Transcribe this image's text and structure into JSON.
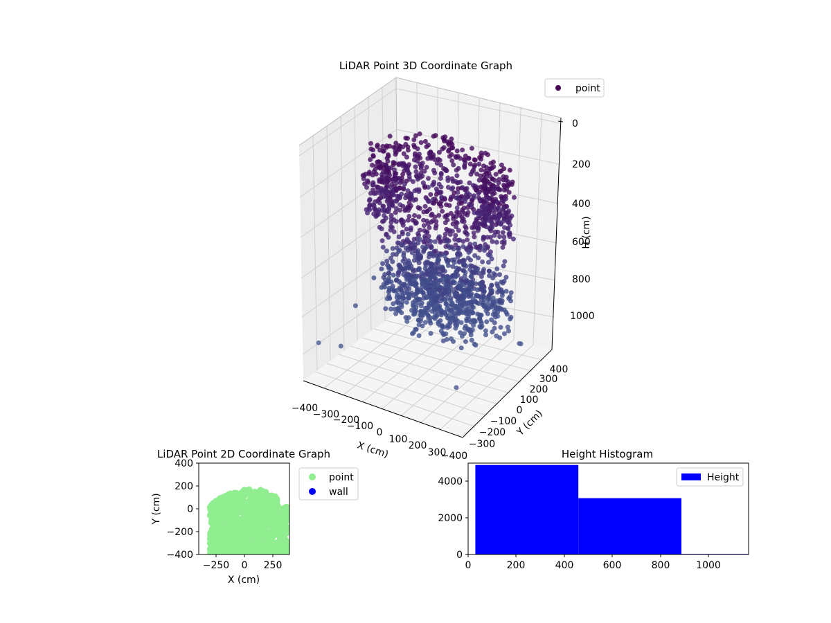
{
  "chart_data": [
    {
      "type": "scatter",
      "projection": "3d",
      "title": "LiDAR Point 3D Coordinate Graph",
      "xlabel": "X (cm)",
      "ylabel": "Y (cm)",
      "zlabel": "H (cm)",
      "x_ticks": [
        "−400",
        "−300",
        "−200",
        "−100",
        "0",
        "100",
        "200",
        "300"
      ],
      "y_ticks": [
        "−400",
        "−300",
        "−200",
        "−100",
        "0",
        "100",
        "200",
        "300",
        "400"
      ],
      "z_ticks": [
        "0",
        "200",
        "400",
        "600",
        "800",
        "1000"
      ],
      "xlim": [
        -400,
        400
      ],
      "ylim": [
        -400,
        400
      ],
      "zlim": [
        0,
        1150
      ],
      "z_axis_inverted": true,
      "colormap": "viridis",
      "legend": [
        "point"
      ],
      "legend_position": "top-right",
      "grid": true,
      "series": [
        {
          "name": "point",
          "description_structure": "dense rings of points at heights ~150-450 cm (upper band) and ~600-900 cm (lower band), scattered outliers near 1000 cm",
          "points": [
            [
              -380,
              300,
              1000
            ],
            [
              -350,
              -120,
              850
            ],
            [
              330,
              330,
              960
            ],
            [
              250,
              150,
              870
            ],
            [
              -360,
              20,
              930
            ],
            [
              300,
              -250,
              1000
            ],
            [
              -200,
              -100,
              930
            ],
            [
              -100,
              -250,
              1050
            ],
            [
              180,
              180,
              780
            ],
            [
              260,
              -330,
              1050
            ],
            [
              -280,
              280,
              990
            ],
            [
              320,
              60,
              820
            ]
          ]
        }
      ]
    },
    {
      "type": "scatter",
      "title": "LiDAR Point 2D Coordinate Graph",
      "xlabel": "X (cm)",
      "ylabel": "Y (cm)",
      "x_ticks": [
        "−250",
        "0",
        "250"
      ],
      "y_ticks": [
        "400",
        "200",
        "0",
        "−200",
        "−400"
      ],
      "xlim": [
        -400,
        400
      ],
      "ylim": [
        -400,
        400
      ],
      "legend": [
        "point",
        "wall"
      ],
      "legend_position": "outside-right",
      "colors": {
        "point": "#90ee90",
        "wall": "#0000ff"
      },
      "series": [
        {
          "name": "point",
          "shape": "dense cloud from x −300..380, y −400..180, rounded top"
        },
        {
          "name": "wall",
          "points": []
        }
      ]
    },
    {
      "type": "bar",
      "title": "Height Histogram",
      "xlabel": "",
      "ylabel": "",
      "x_ticks": [
        "0",
        "200",
        "400",
        "600",
        "800",
        "1000"
      ],
      "y_ticks": [
        "0",
        "2000",
        "4000"
      ],
      "xlim": [
        0,
        1165
      ],
      "ylim": [
        0,
        4950
      ],
      "legend": [
        "Height"
      ],
      "legend_position": "top-right",
      "color": "#0000ff",
      "bins": [
        {
          "start": 30,
          "end": 458,
          "count": 4850
        },
        {
          "start": 458,
          "end": 886,
          "count": 3050
        },
        {
          "start": 886,
          "end": 1165,
          "count": 30
        }
      ]
    }
  ]
}
